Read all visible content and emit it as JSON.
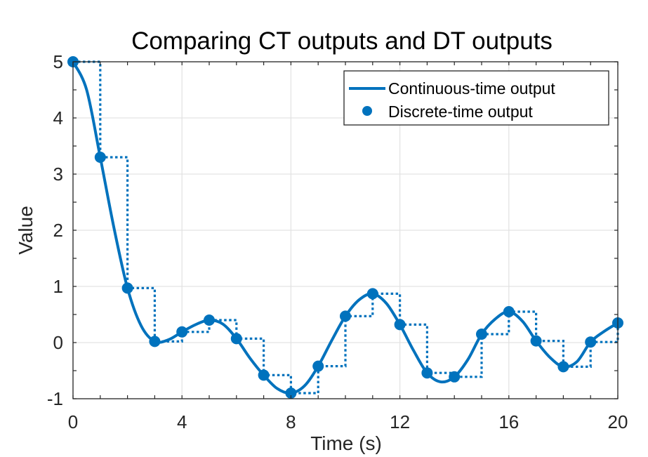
{
  "chart_data": {
    "type": "line",
    "title": "Comparing CT outputs and DT outputs",
    "xlabel": "Time (s)",
    "ylabel": "Value",
    "xlim": [
      0,
      20
    ],
    "ylim": [
      -1,
      5
    ],
    "xticks": [
      0,
      4,
      8,
      12,
      16,
      20
    ],
    "yticks": [
      -1,
      0,
      1,
      2,
      3,
      4,
      5
    ],
    "grid": true,
    "legend_position": "top-right",
    "color": "#0072BD",
    "series": [
      {
        "name": "Continuous-time output",
        "style": "solid-line",
        "x": [
          0,
          0.5,
          1,
          1.5,
          2,
          2.5,
          3,
          3.5,
          4,
          4.5,
          5,
          5.5,
          6,
          6.5,
          7,
          7.5,
          8,
          8.5,
          9,
          9.5,
          10,
          10.5,
          11,
          11.5,
          12,
          12.5,
          13,
          13.5,
          14,
          14.5,
          15,
          15.5,
          16,
          16.5,
          17,
          17.5,
          18,
          18.5,
          19,
          19.5,
          20
        ],
        "y": [
          5,
          4.5,
          3.3,
          2.05,
          0.97,
          0.3,
          0.02,
          0.05,
          0.19,
          0.32,
          0.4,
          0.33,
          0.07,
          -0.28,
          -0.58,
          -0.82,
          -0.9,
          -0.77,
          -0.42,
          0.04,
          0.47,
          0.76,
          0.87,
          0.7,
          0.32,
          -0.14,
          -0.54,
          -0.7,
          -0.61,
          -0.3,
          0.15,
          0.42,
          0.55,
          0.38,
          0.03,
          -0.26,
          -0.43,
          -0.34,
          0.01,
          0.2,
          0.35
        ]
      },
      {
        "name": "Discrete-time output",
        "style": "markers-with-dotted-stairs",
        "x": [
          0,
          1,
          2,
          3,
          4,
          5,
          6,
          7,
          8,
          9,
          10,
          11,
          12,
          13,
          14,
          15,
          16,
          17,
          18,
          19,
          20
        ],
        "y": [
          5,
          3.3,
          0.97,
          0.02,
          0.19,
          0.4,
          0.07,
          -0.58,
          -0.9,
          -0.42,
          0.47,
          0.87,
          0.32,
          -0.54,
          -0.61,
          0.15,
          0.55,
          0.03,
          -0.43,
          0.01,
          0.35
        ]
      }
    ]
  }
}
